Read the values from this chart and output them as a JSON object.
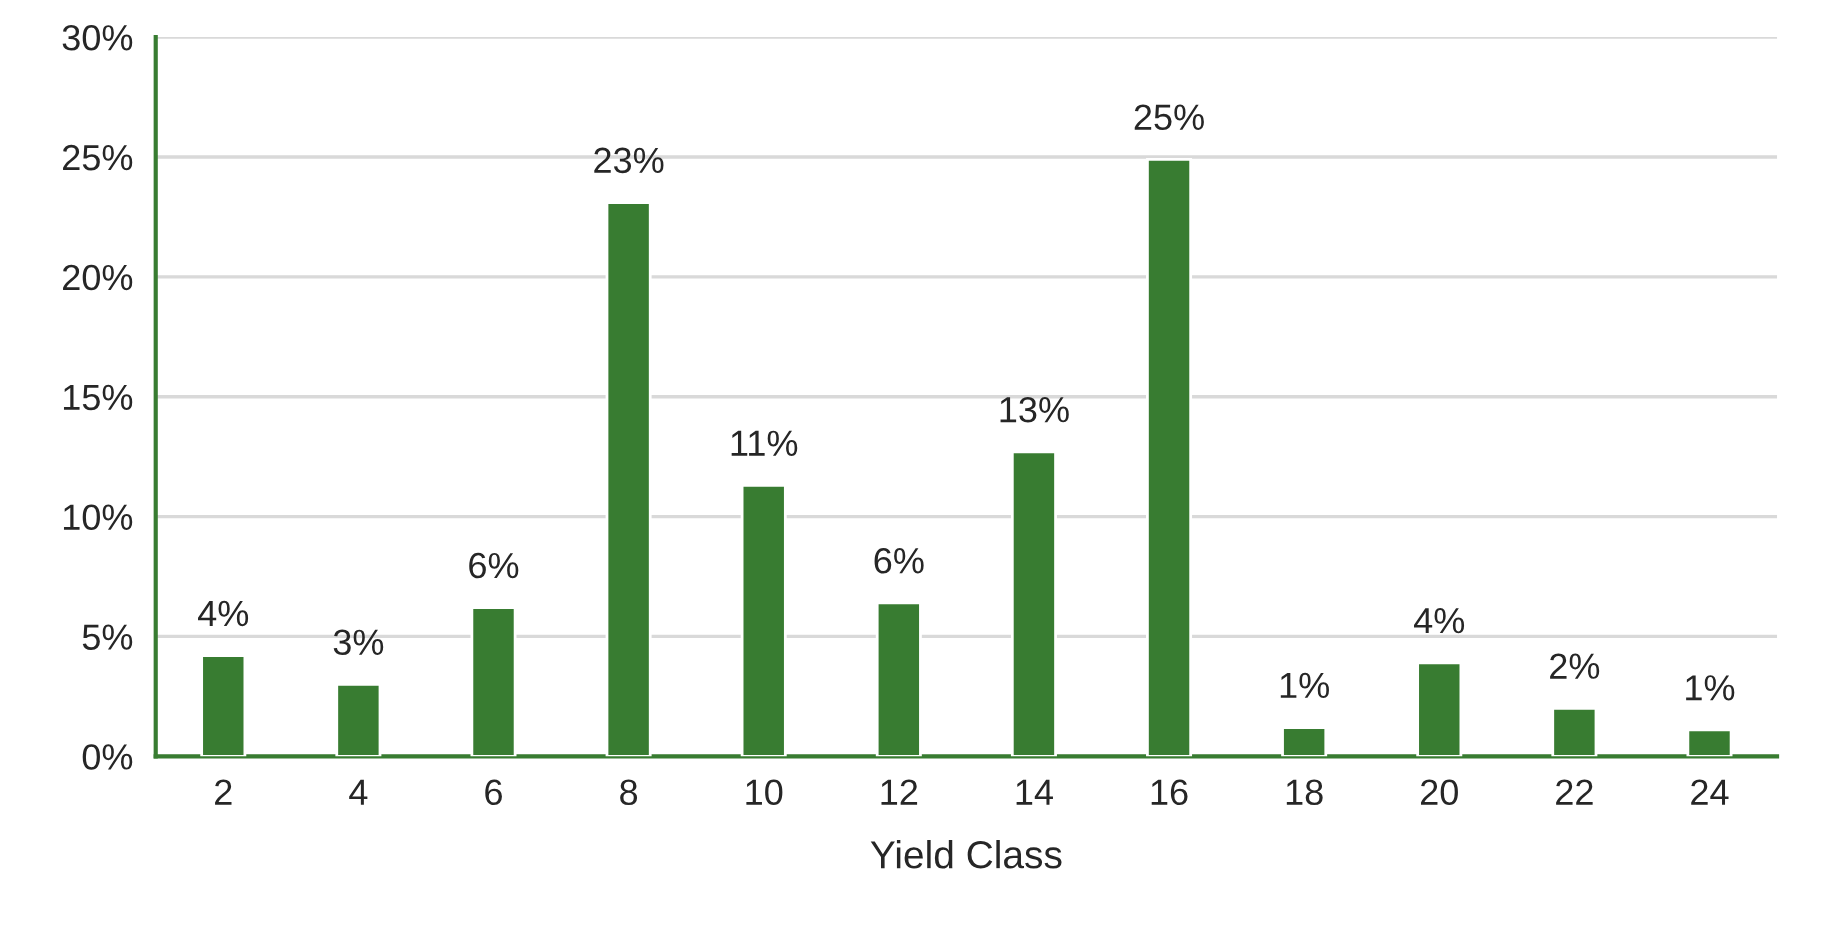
{
  "chart_data": {
    "type": "bar",
    "xlabel": "Yield Class",
    "categories": [
      "2",
      "4",
      "6",
      "8",
      "10",
      "12",
      "14",
      "16",
      "18",
      "20",
      "22",
      "24"
    ],
    "values": [
      4.2,
      3.0,
      6.2,
      23.1,
      11.3,
      6.4,
      12.7,
      24.9,
      1.2,
      3.9,
      2.0,
      1.1
    ],
    "value_labels": [
      "4%",
      "3%",
      "6%",
      "23%",
      "11%",
      "6%",
      "13%",
      "25%",
      "1%",
      "4%",
      "2%",
      "1%"
    ],
    "color": "#387c31",
    "ylim": [
      0,
      30
    ],
    "yticks": [
      {
        "value": 0,
        "label": "0%"
      },
      {
        "value": 5,
        "label": "5%"
      },
      {
        "value": 10,
        "label": "10%"
      },
      {
        "value": 15,
        "label": "15%"
      },
      {
        "value": 20,
        "label": "20%"
      },
      {
        "value": 25,
        "label": "25%"
      },
      {
        "value": 30,
        "label": "30%"
      }
    ],
    "grid": "y"
  }
}
